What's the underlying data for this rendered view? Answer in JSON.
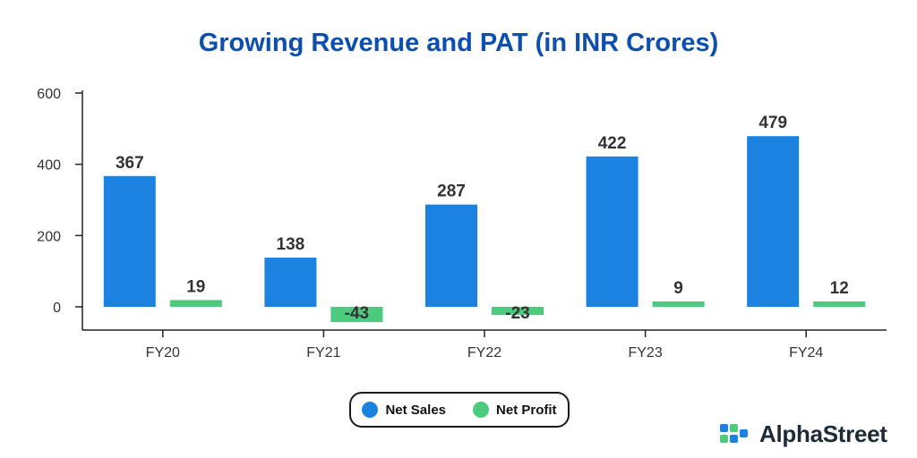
{
  "chart_data": {
    "type": "bar",
    "title": "Growing Revenue and PAT (in INR Crores)",
    "categories": [
      "FY20",
      "FY21",
      "FY22",
      "FY23",
      "FY24"
    ],
    "series": [
      {
        "name": "Net Sales",
        "values": [
          367,
          138,
          287,
          422,
          479
        ],
        "color": "#1b82e0"
      },
      {
        "name": "Net Profit",
        "values": [
          19,
          -43,
          -23,
          9,
          12
        ],
        "color": "#4cca7e"
      }
    ],
    "yticks": [
      0,
      200,
      400,
      600
    ],
    "ylim": [
      -60,
      600
    ],
    "xlabel": "",
    "ylabel": "",
    "legend_position": "bottom-center"
  },
  "brand": {
    "name": "AlphaStreet",
    "logo_colors": [
      "#1b82e0",
      "#4cca7e"
    ]
  }
}
